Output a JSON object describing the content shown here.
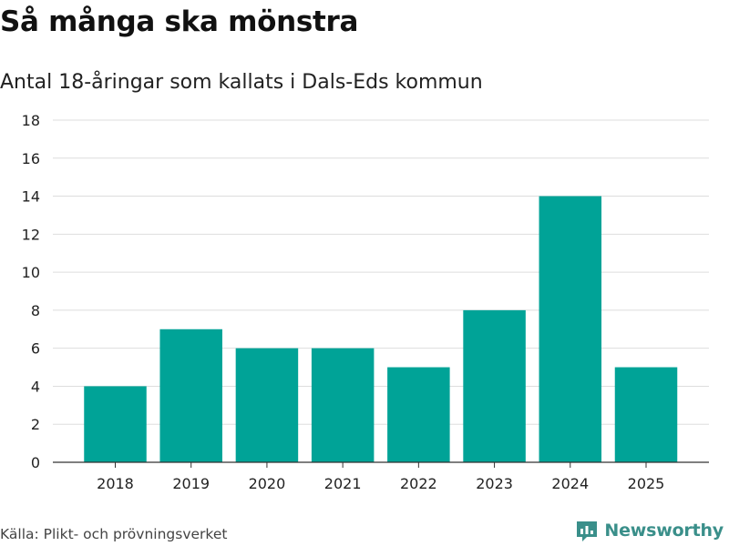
{
  "header": {
    "title": "Så många ska mönstra",
    "subtitle": "Antal 18-åringar som kallats i Dals-Eds kommun"
  },
  "footer": {
    "source": "Källa: Plikt- och prövningsverket",
    "brand": "Newsworthy",
    "brand_icon": "newsworthy-logo-icon"
  },
  "colors": {
    "bar": "#00a397",
    "grid": "#dddddd",
    "axis": "#333333",
    "brand": "#3a8f8a"
  },
  "chart_data": {
    "type": "bar",
    "title": "Så många ska mönstra",
    "subtitle": "Antal 18-åringar som kallats i Dals-Eds kommun",
    "categories": [
      "2018",
      "2019",
      "2020",
      "2021",
      "2022",
      "2023",
      "2024",
      "2025"
    ],
    "values": [
      4,
      7,
      6,
      6,
      5,
      8,
      14,
      5
    ],
    "xlabel": "",
    "ylabel": "",
    "ylim": [
      0,
      18
    ],
    "yticks": [
      0,
      2,
      4,
      6,
      8,
      10,
      12,
      14,
      16,
      18
    ],
    "grid": true,
    "legend": "none"
  }
}
